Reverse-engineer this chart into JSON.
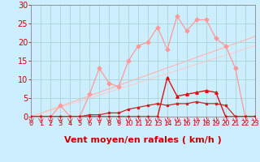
{
  "bg_color": "#cceeff",
  "grid_color": "#aad4d4",
  "xlabel": "Vent moyen/en rafales ( km/h )",
  "xlim": [
    0,
    23
  ],
  "ylim": [
    0,
    30
  ],
  "yticks": [
    0,
    5,
    10,
    15,
    20,
    25,
    30
  ],
  "xticks": [
    0,
    1,
    2,
    3,
    4,
    5,
    6,
    7,
    8,
    9,
    10,
    11,
    12,
    13,
    14,
    15,
    16,
    17,
    18,
    19,
    20,
    21,
    22,
    23
  ],
  "line_diagonal1": {
    "x": [
      0,
      23
    ],
    "y": [
      0,
      21.5
    ],
    "color": "#ffbbbb",
    "lw": 1.0
  },
  "line_diagonal2": {
    "x": [
      0,
      23
    ],
    "y": [
      0,
      19.0
    ],
    "color": "#ffcccc",
    "lw": 0.8
  },
  "line_pink": {
    "x": [
      0,
      1,
      2,
      3,
      4,
      5,
      6,
      7,
      8,
      9,
      10,
      11,
      12,
      13,
      14,
      15,
      16,
      17,
      18,
      19,
      20,
      21,
      22,
      23
    ],
    "y": [
      0,
      0,
      0,
      3,
      0,
      0,
      6,
      13,
      9,
      8,
      15,
      19,
      20,
      24,
      18,
      27,
      23,
      26,
      26,
      21,
      19,
      13,
      0,
      0
    ],
    "color": "#ff9999",
    "marker": "D",
    "ms": 2.5,
    "lw": 0.9
  },
  "line_red_lower": {
    "x": [
      0,
      1,
      2,
      3,
      4,
      5,
      6,
      7,
      8,
      9,
      10,
      11,
      12,
      13,
      14,
      15,
      16,
      17,
      18,
      19,
      20,
      21,
      22,
      23
    ],
    "y": [
      0,
      0,
      0,
      0,
      0,
      0,
      0.5,
      0.5,
      1,
      1,
      2,
      2.5,
      3,
      3.5,
      3,
      3.5,
      3.5,
      4,
      3.5,
      3.5,
      3,
      0,
      0,
      0
    ],
    "color": "#cc2222",
    "marker": "s",
    "ms": 2.0,
    "lw": 0.9
  },
  "line_red_spike": {
    "x": [
      0,
      1,
      2,
      3,
      4,
      5,
      6,
      7,
      8,
      9,
      10,
      11,
      12,
      13,
      14,
      15,
      16,
      17,
      18,
      19,
      20,
      21,
      22,
      23
    ],
    "y": [
      0,
      0,
      0,
      0,
      0,
      0,
      0,
      0,
      0,
      0,
      0,
      0,
      0,
      0,
      10.5,
      5.5,
      6,
      6.5,
      7,
      6.5,
      0,
      0,
      0,
      0
    ],
    "color": "#dd1111",
    "marker": "^",
    "ms": 2.5,
    "lw": 1.0
  },
  "arrow_color": "#cc4444",
  "xlabel_color": "#cc0000",
  "xlabel_fontsize": 8,
  "tick_color": "#cc0000",
  "spine_color": "#888888"
}
